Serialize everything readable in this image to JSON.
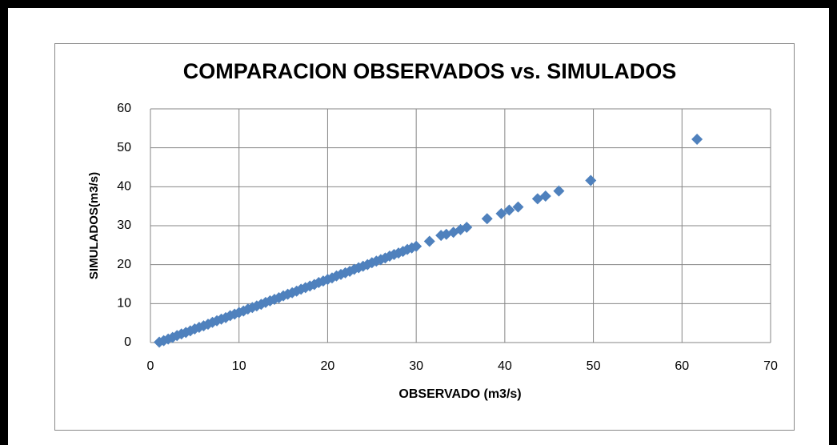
{
  "chart_data": {
    "type": "scatter",
    "title": "COMPARACION  OBSERVADOS vs. SIMULADOS",
    "xlabel": "OBSERVADO (m3/s)",
    "ylabel": "SIMULADOS(m3/s)",
    "series": [
      {
        "color": "#4f81bd",
        "x": [
          1,
          1.5,
          2,
          2.5,
          3,
          3.5,
          4,
          4.5,
          5,
          5.5,
          6,
          6.5,
          7,
          7.5,
          8,
          8.5,
          9,
          9.5,
          10,
          10.5,
          11,
          11.5,
          12,
          12.5,
          13,
          13.5,
          14,
          14.5,
          15,
          15.5,
          16,
          16.5,
          17,
          17.5,
          18,
          18.5,
          19,
          19.5,
          20,
          20.5,
          21,
          21.5,
          22,
          22.5,
          23,
          23.5,
          24,
          24.5,
          25,
          25.5,
          26,
          26.5,
          27,
          27.5,
          28,
          28.5,
          29,
          29.5,
          30,
          31.5,
          32.8,
          33.4,
          34.2,
          35,
          35.7,
          38,
          39.6,
          40.5,
          41.5,
          43.7,
          44.6,
          46.1,
          49.7,
          61.7
        ],
        "values": [
          0.1,
          0.5,
          0.9,
          1.3,
          1.8,
          2.2,
          2.6,
          3.0,
          3.5,
          3.9,
          4.3,
          4.7,
          5.2,
          5.6,
          6.0,
          6.4,
          6.9,
          7.3,
          7.7,
          8.1,
          8.6,
          9.0,
          9.4,
          9.8,
          10.3,
          10.7,
          11.1,
          11.5,
          12.0,
          12.4,
          12.8,
          13.2,
          13.7,
          14.1,
          14.5,
          14.9,
          15.4,
          15.8,
          16.2,
          16.6,
          17.1,
          17.5,
          17.9,
          18.3,
          18.8,
          19.2,
          19.6,
          20.0,
          20.5,
          20.9,
          21.3,
          21.7,
          22.2,
          22.6,
          23.0,
          23.4,
          23.9,
          24.3,
          24.7,
          26.0,
          27.5,
          27.8,
          28.3,
          29.0,
          29.6,
          31.8,
          33.1,
          34.0,
          34.8,
          36.9,
          37.6,
          38.9,
          41.6,
          52.2
        ]
      }
    ],
    "xlim": [
      0,
      70
    ],
    "xticks": [
      0,
      10,
      20,
      30,
      40,
      50,
      60,
      70
    ],
    "ylim": [
      0,
      60
    ],
    "yticks": [
      0,
      10,
      20,
      30,
      40,
      50,
      60
    ],
    "grid": true
  }
}
